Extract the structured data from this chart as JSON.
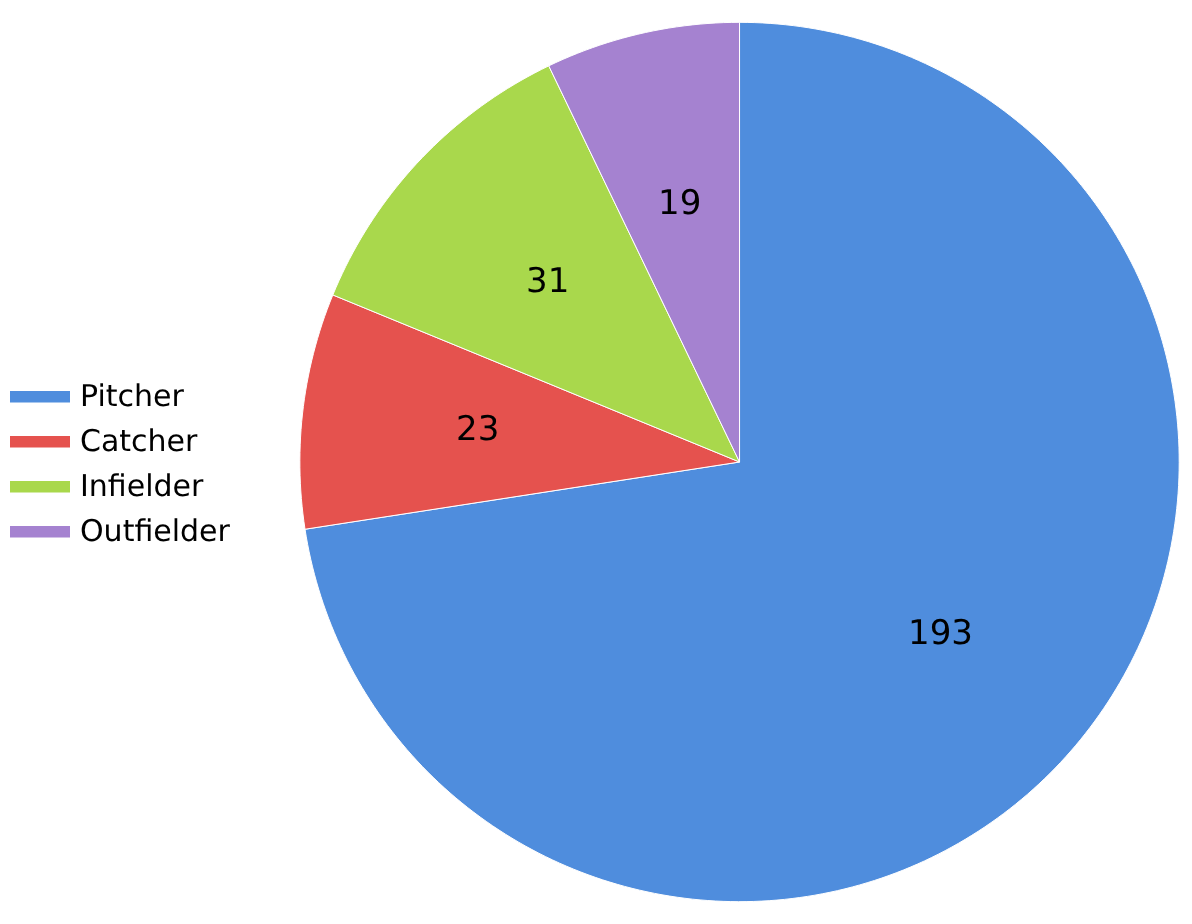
{
  "chart_data": {
    "type": "pie",
    "categories": [
      "Pitcher",
      "Catcher",
      "Infielder",
      "Outfielder"
    ],
    "values": [
      193,
      23,
      31,
      19
    ],
    "colors": [
      "#4f8ddd",
      "#e5524e",
      "#a9d84c",
      "#a582d0"
    ],
    "data_labels": true,
    "legend": "left"
  }
}
